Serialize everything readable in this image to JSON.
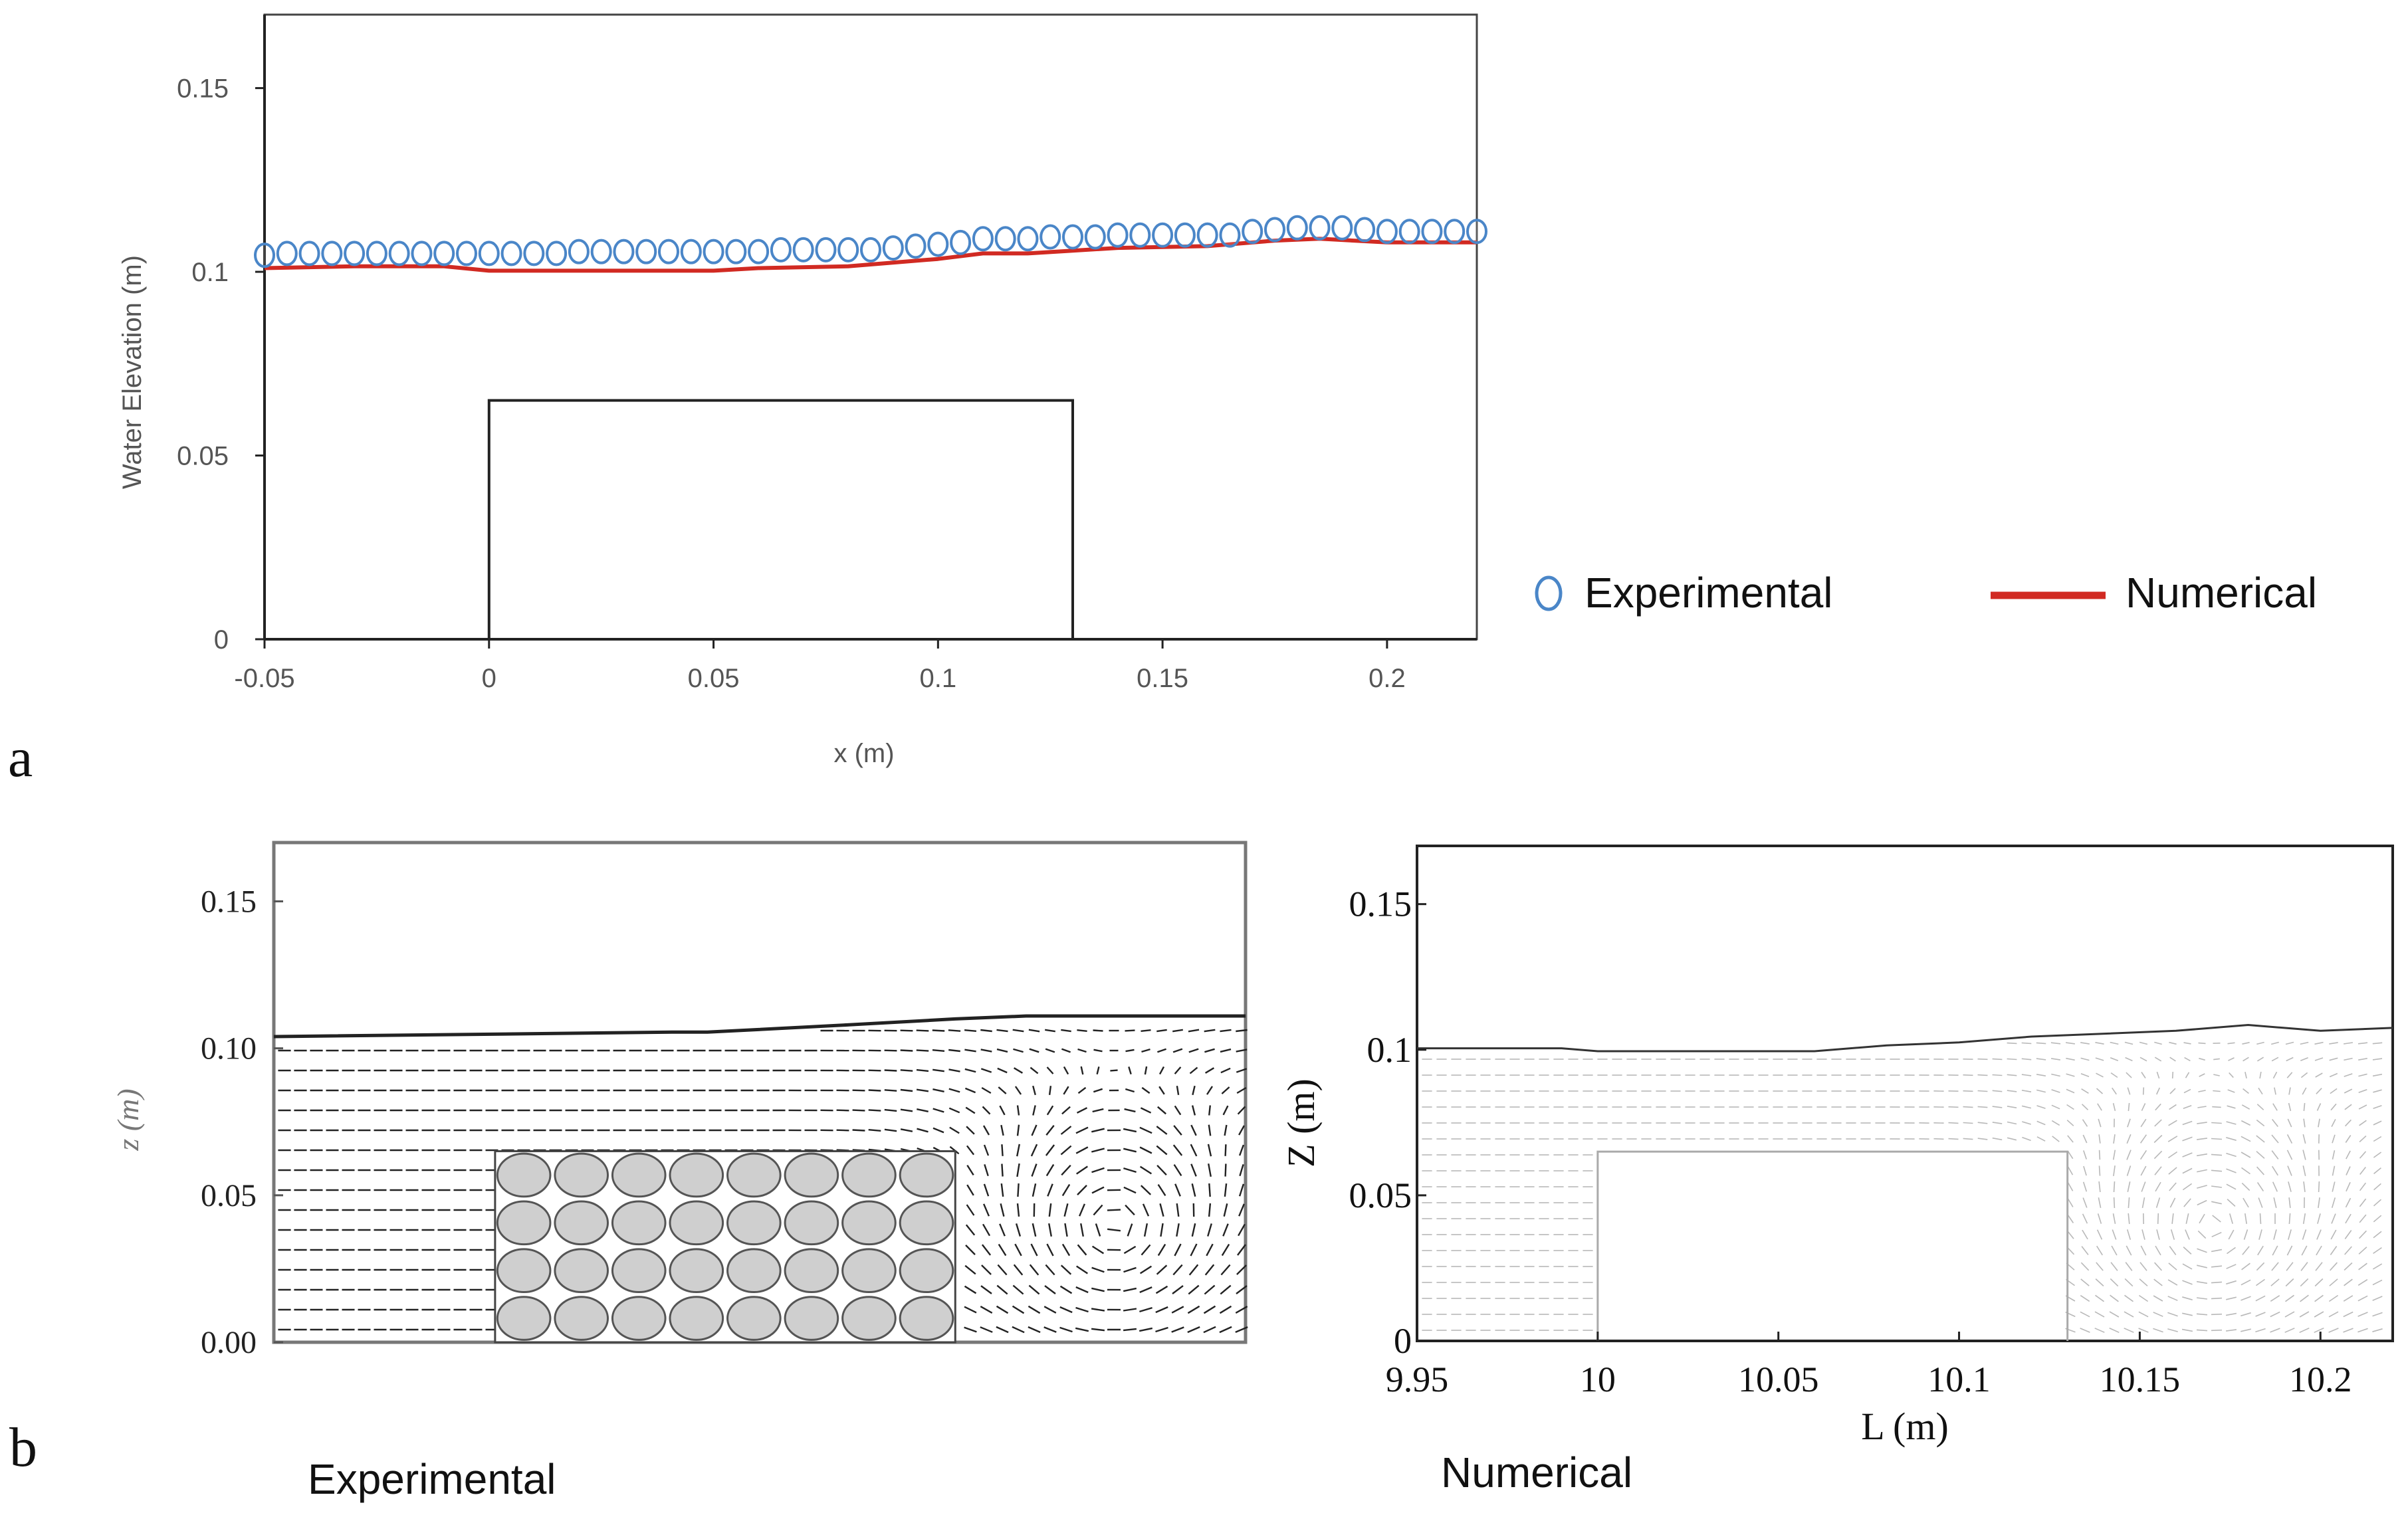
{
  "panel_labels": {
    "a": "a",
    "b": "b"
  },
  "colors": {
    "experimental": "#4a86c8",
    "numerical": "#d12a22",
    "axis_gray": "#555555",
    "text_dark": "#111111",
    "flume_vec_dark": "#222222",
    "flume_vec_light": "#b8b8b8",
    "stone_fill": "#cfcfcf"
  },
  "chart_data": [
    {
      "id": "a",
      "type": "line",
      "title": "",
      "xlabel": "x (m)",
      "ylabel": "Water Elevation (m)",
      "xlim": [
        -0.05,
        0.22
      ],
      "ylim": [
        0,
        0.17
      ],
      "xticks": [
        -0.05,
        0,
        0.05,
        0.1,
        0.15,
        0.2
      ],
      "xtick_labels": [
        "-0.05",
        "0",
        "0.05",
        "0.1",
        "0.15",
        "0.2"
      ],
      "yticks": [
        0,
        0.05,
        0.1,
        0.15
      ],
      "ytick_labels": [
        "0",
        "0.05",
        "0.1",
        "0.15"
      ],
      "obstacle": {
        "x0": 0,
        "x1": 0.13,
        "height": 0.065
      },
      "legend": {
        "position": "right",
        "items": [
          "Experimental",
          "Numerical"
        ]
      },
      "series": [
        {
          "name": "Experimental",
          "style": "open-circle",
          "x": [
            -0.05,
            -0.045,
            -0.04,
            -0.035,
            -0.03,
            -0.025,
            -0.02,
            -0.015,
            -0.01,
            -0.005,
            0,
            0.005,
            0.01,
            0.015,
            0.02,
            0.025,
            0.03,
            0.035,
            0.04,
            0.045,
            0.05,
            0.055,
            0.06,
            0.065,
            0.07,
            0.075,
            0.08,
            0.085,
            0.09,
            0.095,
            0.1,
            0.105,
            0.11,
            0.115,
            0.12,
            0.125,
            0.13,
            0.135,
            0.14,
            0.145,
            0.15,
            0.155,
            0.16,
            0.165,
            0.17,
            0.175,
            0.18,
            0.185,
            0.19,
            0.195,
            0.2,
            0.205,
            0.21,
            0.215,
            0.22
          ],
          "values": [
            0.1045,
            0.105,
            0.105,
            0.105,
            0.105,
            0.105,
            0.105,
            0.105,
            0.105,
            0.105,
            0.105,
            0.105,
            0.105,
            0.105,
            0.1055,
            0.1055,
            0.1055,
            0.1055,
            0.1055,
            0.1055,
            0.1055,
            0.1055,
            0.1055,
            0.106,
            0.106,
            0.106,
            0.106,
            0.106,
            0.1065,
            0.107,
            0.1075,
            0.108,
            0.109,
            0.109,
            0.109,
            0.1095,
            0.1095,
            0.1095,
            0.11,
            0.11,
            0.11,
            0.11,
            0.11,
            0.11,
            0.111,
            0.1115,
            0.112,
            0.112,
            0.112,
            0.1115,
            0.111,
            0.111,
            0.111,
            0.111,
            0.111
          ]
        },
        {
          "name": "Numerical",
          "style": "line",
          "x": [
            -0.05,
            -0.03,
            -0.01,
            0,
            0.02,
            0.04,
            0.05,
            0.06,
            0.08,
            0.1,
            0.11,
            0.12,
            0.14,
            0.16,
            0.175,
            0.185,
            0.2,
            0.22
          ],
          "values": [
            0.101,
            0.1015,
            0.1015,
            0.1003,
            0.1003,
            0.1003,
            0.1003,
            0.101,
            0.1015,
            0.1035,
            0.105,
            0.105,
            0.1065,
            0.107,
            0.1085,
            0.109,
            0.108,
            0.108
          ]
        }
      ]
    },
    {
      "id": "b-experimental",
      "type": "line",
      "title": "",
      "caption": "Experimental",
      "xlabel": "",
      "ylabel": "z (m)",
      "ylim": [
        0,
        0.17
      ],
      "yticks": [
        0,
        0.05,
        0.1,
        0.15
      ],
      "ytick_labels": [
        "0.00",
        "0.05",
        "0.10",
        "0.15"
      ],
      "x_range": [
        -0.0625,
        0.212
      ],
      "surface_x": [
        -0.0625,
        0.05,
        0.06,
        0.1,
        0.13,
        0.15,
        0.212
      ],
      "surface_z": [
        0.104,
        0.1055,
        0.1055,
        0.108,
        0.11,
        0.111,
        0.111
      ],
      "stone_grid": {
        "rows": 4,
        "cols": 8,
        "x0": 0,
        "x1": 0.13,
        "z0": 0,
        "z1": 0.065
      },
      "vortex_center": [
        0.175,
        0.04
      ]
    },
    {
      "id": "b-numerical",
      "type": "line",
      "title": "",
      "caption": "Numerical",
      "xlabel": "L (m)",
      "ylabel": "Z (m)",
      "xlim": [
        9.95,
        10.22
      ],
      "ylim": [
        0,
        0.17
      ],
      "xticks": [
        9.95,
        10,
        10.05,
        10.1,
        10.15,
        10.2
      ],
      "xtick_labels": [
        "9.95",
        "10",
        "10.05",
        "10.1",
        "10.15",
        "10.2"
      ],
      "yticks": [
        0,
        0.05,
        0.1,
        0.15
      ],
      "ytick_labels": [
        "0",
        "0.05",
        "0.1",
        "0.15"
      ],
      "obstacle": {
        "x0": 10,
        "x1": 10.13,
        "height": 0.065
      },
      "surface_x": [
        9.95,
        9.99,
        10.0,
        10.06,
        10.08,
        10.1,
        10.12,
        10.16,
        10.18,
        10.19,
        10.2,
        10.22
      ],
      "surface_z": [
        0.1005,
        0.1005,
        0.0995,
        0.0995,
        0.1015,
        0.1025,
        0.1045,
        0.1065,
        0.1085,
        0.1075,
        0.1065,
        0.1075
      ],
      "vortex_center": [
        10.17,
        0.04
      ]
    }
  ]
}
